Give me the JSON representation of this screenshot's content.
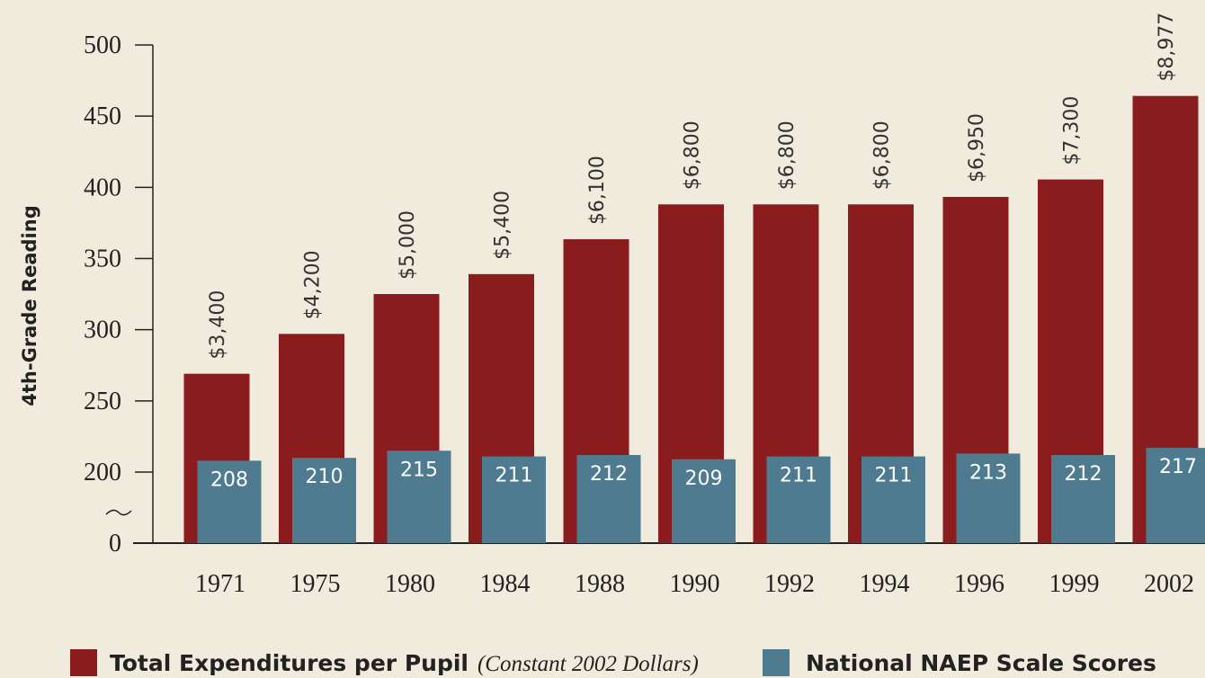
{
  "chart_data": {
    "type": "bar",
    "y_label": "4th-Grade Reading",
    "categories": [
      "1971",
      "1975",
      "1980",
      "1984",
      "1988",
      "1990",
      "1992",
      "1994",
      "1996",
      "1999",
      "2002"
    ],
    "ylim": [
      0,
      500
    ],
    "yticks": [
      0,
      200,
      250,
      300,
      350,
      400,
      450,
      500
    ],
    "y2lim": [
      0,
      10000
    ],
    "series": [
      {
        "name": "Total Expenditures per Pupil",
        "name_note": "(Constant 2002 Dollars)",
        "color": "#8b1c1e",
        "axis": "y2",
        "values": [
          3400,
          4200,
          5000,
          5400,
          6100,
          6800,
          6800,
          6800,
          6950,
          7300,
          8977
        ],
        "value_labels": [
          "$3,400",
          "$4,200",
          "$5,000",
          "$5,400",
          "$6,100",
          "$6,800",
          "$6,800",
          "$6,800",
          "$6,950",
          "$7,300",
          "$8,977"
        ]
      },
      {
        "name": "National NAEP Scale Scores",
        "color": "#4e7b8f",
        "values": [
          208,
          210,
          215,
          211,
          212,
          209,
          211,
          211,
          213,
          212,
          217
        ]
      }
    ]
  }
}
